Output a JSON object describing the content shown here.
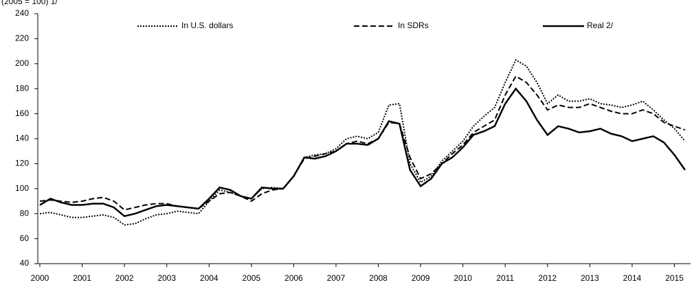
{
  "chart_data": {
    "type": "line",
    "subtitle": "(2005 = 100) 1/",
    "x": [
      2000,
      2000.25,
      2000.5,
      2000.75,
      2001,
      2001.25,
      2001.5,
      2001.75,
      2002,
      2002.25,
      2002.5,
      2002.75,
      2003,
      2003.25,
      2003.5,
      2003.75,
      2004,
      2004.25,
      2004.5,
      2004.75,
      2005,
      2005.25,
      2005.5,
      2005.75,
      2006,
      2006.25,
      2006.5,
      2006.75,
      2007,
      2007.25,
      2007.5,
      2007.75,
      2008,
      2008.25,
      2008.5,
      2008.75,
      2009,
      2009.25,
      2009.5,
      2009.75,
      2010,
      2010.25,
      2010.5,
      2010.75,
      2011,
      2011.25,
      2011.5,
      2011.75,
      2012,
      2012.25,
      2012.5,
      2012.75,
      2013,
      2013.25,
      2013.5,
      2013.75,
      2014,
      2014.25,
      2014.5,
      2014.75,
      2015,
      2015.25
    ],
    "series": [
      {
        "name": "In U.S. dollars",
        "color": "#000000",
        "style": "dotted",
        "values": [
          80,
          81,
          79,
          77,
          77,
          78,
          79,
          77,
          71,
          72,
          76,
          79,
          80,
          82,
          81,
          80,
          90,
          99,
          97,
          94,
          92,
          100,
          101,
          100,
          110,
          125,
          127,
          128,
          132,
          140,
          142,
          140,
          145,
          167,
          168,
          120,
          105,
          110,
          122,
          130,
          138,
          150,
          158,
          165,
          185,
          203,
          198,
          185,
          168,
          175,
          170,
          170,
          172,
          168,
          167,
          165,
          167,
          170,
          163,
          155,
          148,
          138
        ]
      },
      {
        "name": "In SDRs",
        "color": "#000000",
        "style": "dashed",
        "values": [
          90,
          91,
          90,
          89,
          90,
          92,
          93,
          90,
          83,
          85,
          87,
          88,
          88,
          86,
          85,
          84,
          90,
          96,
          97,
          94,
          90,
          96,
          99,
          100,
          110,
          124,
          126,
          128,
          130,
          136,
          138,
          136,
          140,
          153,
          152,
          125,
          108,
          112,
          120,
          128,
          135,
          145,
          150,
          155,
          175,
          190,
          185,
          175,
          163,
          167,
          165,
          165,
          168,
          165,
          162,
          160,
          160,
          163,
          160,
          153,
          150,
          147
        ]
      },
      {
        "name": "Real 2/",
        "color": "#000000",
        "style": "solid",
        "values": [
          87,
          92,
          89,
          87,
          87,
          88,
          88,
          85,
          78,
          80,
          83,
          86,
          87,
          86,
          85,
          84,
          92,
          101,
          99,
          94,
          92,
          101,
          100,
          100,
          110,
          125,
          124,
          126,
          130,
          136,
          136,
          135,
          140,
          154,
          152,
          115,
          102,
          108,
          120,
          125,
          133,
          143,
          146,
          150,
          168,
          180,
          170,
          155,
          143,
          150,
          148,
          145,
          146,
          148,
          144,
          142,
          138,
          140,
          142,
          137,
          127,
          115
        ]
      }
    ],
    "xlim": [
      2000,
      2015.35
    ],
    "xticks": [
      2000,
      2001,
      2002,
      2003,
      2004,
      2005,
      2006,
      2007,
      2008,
      2009,
      2010,
      2011,
      2012,
      2013,
      2014,
      2015
    ],
    "ylim": [
      40,
      240
    ],
    "yticks": [
      40,
      60,
      80,
      100,
      120,
      140,
      160,
      180,
      200,
      220,
      240
    ]
  }
}
